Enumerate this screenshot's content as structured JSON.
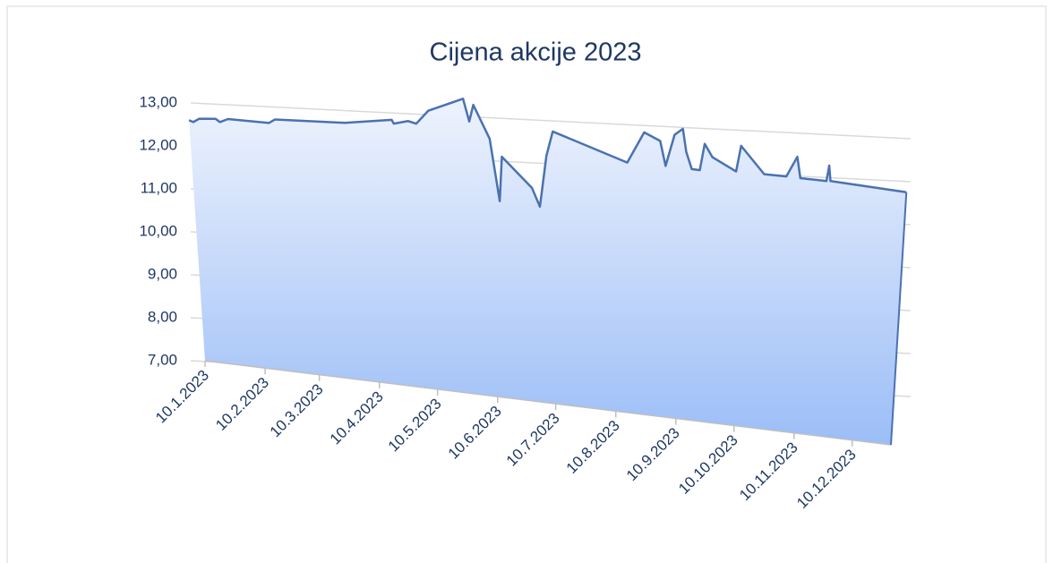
{
  "chart_data": {
    "type": "area",
    "title": "Cijena akcije 2023",
    "x": [
      "2023-01-10",
      "2023-01-12",
      "2023-01-15",
      "2023-01-23",
      "2023-01-25",
      "2023-01-29",
      "2023-02-18",
      "2023-02-21",
      "2023-03-27",
      "2023-04-19",
      "2023-04-20",
      "2023-04-27",
      "2023-05-01",
      "2023-05-07",
      "2023-05-24",
      "2023-05-27",
      "2023-05-29",
      "2023-06-06",
      "2023-06-11",
      "2023-06-12",
      "2023-06-27",
      "2023-07-01",
      "2023-07-04",
      "2023-07-07",
      "2023-08-13",
      "2023-08-21",
      "2023-08-29",
      "2023-09-01",
      "2023-09-05",
      "2023-09-09",
      "2023-09-11",
      "2023-09-14",
      "2023-09-18",
      "2023-09-20",
      "2023-09-24",
      "2023-10-06",
      "2023-10-08",
      "2023-10-20",
      "2023-10-31",
      "2023-11-05",
      "2023-11-07",
      "2023-11-20",
      "2023-11-21",
      "2023-11-22",
      "2023-12-30"
    ],
    "values": [
      12.6,
      12.55,
      12.62,
      12.6,
      12.52,
      12.58,
      12.45,
      12.52,
      12.38,
      12.4,
      12.32,
      12.36,
      12.3,
      12.55,
      12.75,
      12.3,
      12.62,
      11.95,
      10.75,
      11.6,
      11.0,
      10.65,
      11.6,
      12.05,
      11.45,
      11.98,
      11.82,
      11.38,
      11.92,
      12.02,
      11.62,
      11.32,
      11.3,
      11.75,
      11.52,
      11.27,
      11.7,
      11.22,
      11.18,
      11.5,
      11.15,
      11.1,
      11.35,
      11.1,
      10.92
    ],
    "color": "#4a72b0",
    "xlim": [
      "2023-01-10",
      "2023-12-30"
    ],
    "xticks": [
      {
        "value": "2023-01-10",
        "label": "10.1.2023"
      },
      {
        "value": "2023-02-10",
        "label": "10.2.2023"
      },
      {
        "value": "2023-03-10",
        "label": "10.3.2023"
      },
      {
        "value": "2023-04-10",
        "label": "10.4.2023"
      },
      {
        "value": "2023-05-10",
        "label": "10.5.2023"
      },
      {
        "value": "2023-06-10",
        "label": "10.6.2023"
      },
      {
        "value": "2023-07-10",
        "label": "10.7.2023"
      },
      {
        "value": "2023-08-10",
        "label": "10.8.2023"
      },
      {
        "value": "2023-09-10",
        "label": "10.9.2023"
      },
      {
        "value": "2023-10-10",
        "label": "10.10.2023"
      },
      {
        "value": "2023-11-10",
        "label": "10.11.2023"
      },
      {
        "value": "2023-12-10",
        "label": "10.12.2023"
      }
    ],
    "ylim": [
      7,
      13
    ],
    "yticks": [
      {
        "value": 7,
        "label": "7,00"
      },
      {
        "value": 8,
        "label": "8,00"
      },
      {
        "value": 9,
        "label": "9,00"
      },
      {
        "value": 10,
        "label": "10,00"
      },
      {
        "value": 11,
        "label": "11,00"
      },
      {
        "value": 12,
        "label": "12,00"
      },
      {
        "value": 13,
        "label": "13,00"
      }
    ],
    "grid": true
  }
}
